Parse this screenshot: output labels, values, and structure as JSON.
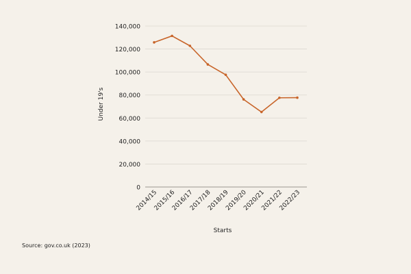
{
  "chart_data": {
    "type": "line",
    "title": "",
    "xlabel": "Starts",
    "ylabel": "Under 19's",
    "categories": [
      "2014/15",
      "2015/16",
      "2016/17",
      "2017/18",
      "2018/19",
      "2019/20",
      "2020/21",
      "2021/22",
      "2022/23"
    ],
    "series": [
      {
        "values": [
          125800,
          131400,
          122800,
          106600,
          97600,
          76200,
          65200,
          77600,
          77700
        ]
      }
    ],
    "ylim": [
      0,
      140000
    ],
    "yticks": [
      0,
      20000,
      40000,
      60000,
      80000,
      100000,
      120000,
      140000
    ],
    "ytick_labels": [
      "0",
      "20,000",
      "40,000",
      "60,000",
      "80,000",
      "100,000",
      "120,000",
      "140,000"
    ],
    "grid": true,
    "legend": "none",
    "colors": {
      "line": "#c8652a",
      "grid": "#dcd8d0",
      "background": "#f5f1ea",
      "text": "#222222"
    }
  },
  "source": "Source: gov.co.uk (2023)"
}
